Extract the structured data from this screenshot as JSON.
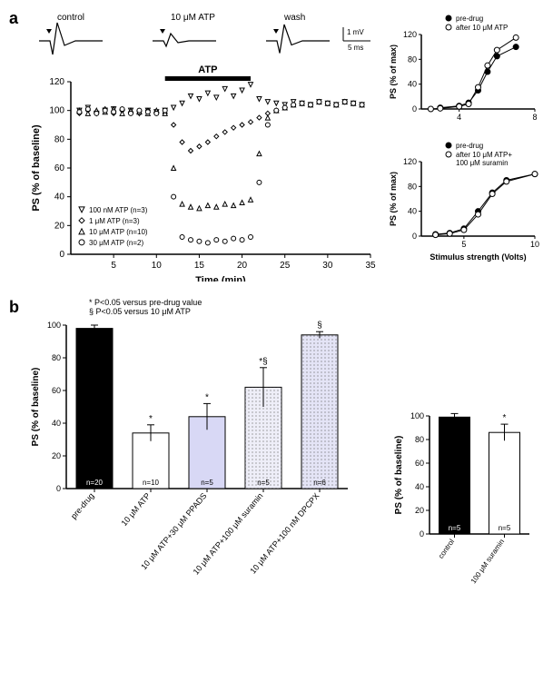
{
  "panel_a": {
    "label": "a",
    "traces": {
      "control_label": "control",
      "atp_label": "10 μM ATP",
      "wash_label": "wash",
      "scale_v": "1 mV",
      "scale_t": "5 ms"
    },
    "timecourse": {
      "ylabel": "PS (% of baseline)",
      "xlabel": "Time (min)",
      "ylim": [
        0,
        120
      ],
      "yticks": [
        0,
        20,
        40,
        60,
        80,
        100,
        120
      ],
      "xlim": [
        0,
        35
      ],
      "xticks": [
        5,
        10,
        15,
        20,
        25,
        30,
        35
      ],
      "atp_bar_label": "ATP",
      "atp_bar_start": 11,
      "atp_bar_end": 21,
      "legend": [
        {
          "marker": "invtriangle",
          "label": "100 nM ATP (n=3)"
        },
        {
          "marker": "diamond",
          "label": "1 μM ATP (n=3)"
        },
        {
          "marker": "triangle",
          "label": "10 μM ATP (n=10)"
        },
        {
          "marker": "circle",
          "label": "30 μM ATP (n=2)"
        }
      ],
      "series": {
        "100nM": {
          "marker": "invtriangle",
          "data": [
            [
              1,
              100
            ],
            [
              2,
              102
            ],
            [
              3,
              98
            ],
            [
              4,
              100
            ],
            [
              5,
              101
            ],
            [
              6,
              99
            ],
            [
              7,
              100
            ],
            [
              8,
              98
            ],
            [
              9,
              100
            ],
            [
              10,
              99
            ],
            [
              11,
              100
            ],
            [
              12,
              102
            ],
            [
              13,
              105
            ],
            [
              14,
              110
            ],
            [
              15,
              108
            ],
            [
              16,
              112
            ],
            [
              17,
              109
            ],
            [
              18,
              115
            ],
            [
              19,
              110
            ],
            [
              20,
              114
            ],
            [
              21,
              118
            ],
            [
              22,
              108
            ],
            [
              23,
              106
            ],
            [
              24,
              105
            ],
            [
              25,
              104
            ],
            [
              26,
              106
            ],
            [
              27,
              105
            ],
            [
              28,
              104
            ],
            [
              29,
              106
            ],
            [
              30,
              105
            ],
            [
              31,
              104
            ],
            [
              32,
              106
            ],
            [
              33,
              105
            ],
            [
              34,
              104
            ]
          ]
        },
        "1uM": {
          "marker": "diamond",
          "data": [
            [
              1,
              98
            ],
            [
              2,
              100
            ],
            [
              3,
              99
            ],
            [
              4,
              101
            ],
            [
              5,
              98
            ],
            [
              6,
              100
            ],
            [
              7,
              99
            ],
            [
              8,
              98
            ],
            [
              9,
              100
            ],
            [
              10,
              99
            ],
            [
              11,
              98
            ],
            [
              12,
              90
            ],
            [
              13,
              78
            ],
            [
              14,
              72
            ],
            [
              15,
              75
            ],
            [
              16,
              78
            ],
            [
              17,
              82
            ],
            [
              18,
              85
            ],
            [
              19,
              88
            ],
            [
              20,
              90
            ],
            [
              21,
              92
            ],
            [
              22,
              95
            ],
            [
              23,
              98
            ],
            [
              24,
              100
            ],
            [
              25,
              102
            ],
            [
              26,
              104
            ],
            [
              27,
              105
            ],
            [
              28,
              104
            ],
            [
              29,
              106
            ],
            [
              30,
              105
            ],
            [
              31,
              104
            ],
            [
              32,
              106
            ],
            [
              33,
              105
            ],
            [
              34,
              104
            ]
          ]
        },
        "10uM": {
          "marker": "triangle",
          "data": [
            [
              1,
              100
            ],
            [
              2,
              98
            ],
            [
              3,
              100
            ],
            [
              4,
              99
            ],
            [
              5,
              101
            ],
            [
              6,
              98
            ],
            [
              7,
              100
            ],
            [
              8,
              99
            ],
            [
              9,
              98
            ],
            [
              10,
              100
            ],
            [
              11,
              98
            ],
            [
              12,
              60
            ],
            [
              13,
              35
            ],
            [
              14,
              33
            ],
            [
              15,
              32
            ],
            [
              16,
              34
            ],
            [
              17,
              33
            ],
            [
              18,
              35
            ],
            [
              19,
              34
            ],
            [
              20,
              36
            ],
            [
              21,
              38
            ],
            [
              22,
              70
            ],
            [
              23,
              95
            ],
            [
              24,
              100
            ],
            [
              25,
              102
            ],
            [
              26,
              104
            ],
            [
              27,
              105
            ],
            [
              28,
              104
            ],
            [
              29,
              106
            ],
            [
              30,
              105
            ],
            [
              31,
              104
            ],
            [
              32,
              106
            ],
            [
              33,
              105
            ],
            [
              34,
              104
            ]
          ]
        },
        "30uM": {
          "marker": "circle",
          "data": [
            [
              1,
              99
            ],
            [
              2,
              101
            ],
            [
              3,
              98
            ],
            [
              4,
              100
            ],
            [
              5,
              99
            ],
            [
              6,
              101
            ],
            [
              7,
              98
            ],
            [
              8,
              100
            ],
            [
              9,
              99
            ],
            [
              10,
              98
            ],
            [
              11,
              100
            ],
            [
              12,
              40
            ],
            [
              13,
              12
            ],
            [
              14,
              10
            ],
            [
              15,
              9
            ],
            [
              16,
              8
            ],
            [
              17,
              10
            ],
            [
              18,
              9
            ],
            [
              19,
              11
            ],
            [
              20,
              10
            ],
            [
              21,
              12
            ],
            [
              22,
              50
            ],
            [
              23,
              90
            ],
            [
              24,
              100
            ],
            [
              25,
              102
            ],
            [
              26,
              104
            ],
            [
              27,
              105
            ],
            [
              28,
              104
            ],
            [
              29,
              106
            ],
            [
              30,
              105
            ],
            [
              31,
              104
            ],
            [
              32,
              106
            ],
            [
              33,
              105
            ],
            [
              34,
              104
            ]
          ]
        }
      },
      "grid_color": "#000",
      "bg": "#fff"
    },
    "io_top": {
      "ylabel": "PS (% of max)",
      "xlabel": "",
      "ylim": [
        0,
        120
      ],
      "yticks": [
        0,
        40,
        80,
        120
      ],
      "xlim": [
        2,
        8
      ],
      "xticks": [
        4,
        8
      ],
      "legend": [
        {
          "fill": "#000",
          "label": "pre-drug"
        },
        {
          "fill": "#fff",
          "label": "after 10 μM ATP"
        }
      ],
      "series": {
        "pre": {
          "marker": "fcircle",
          "data": [
            [
              3,
              2
            ],
            [
              4,
              5
            ],
            [
              4.5,
              10
            ],
            [
              5,
              30
            ],
            [
              5.5,
              60
            ],
            [
              6,
              85
            ],
            [
              7,
              100
            ]
          ]
        },
        "post": {
          "marker": "circle",
          "data": [
            [
              2.5,
              0
            ],
            [
              3,
              1
            ],
            [
              4,
              4
            ],
            [
              4.5,
              8
            ],
            [
              5,
              35
            ],
            [
              5.5,
              70
            ],
            [
              6,
              95
            ],
            [
              7,
              115
            ]
          ]
        }
      }
    },
    "io_bottom": {
      "ylabel": "PS (% of max)",
      "xlabel": "Stimulus strength (Volts)",
      "ylim": [
        0,
        120
      ],
      "yticks": [
        0,
        40,
        80,
        120
      ],
      "xlim": [
        2,
        10
      ],
      "xticks": [
        5,
        10
      ],
      "legend": [
        {
          "fill": "#000",
          "label": "pre-drug"
        },
        {
          "fill": "#fff",
          "label": "after 10 μM ATP+\n100 μM suramin"
        }
      ],
      "series": {
        "pre": {
          "marker": "fcircle",
          "data": [
            [
              3,
              3
            ],
            [
              4,
              5
            ],
            [
              5,
              12
            ],
            [
              6,
              40
            ],
            [
              7,
              70
            ],
            [
              8,
              90
            ],
            [
              10,
              100
            ]
          ]
        },
        "post": {
          "marker": "circle",
          "data": [
            [
              3,
              2
            ],
            [
              4,
              4
            ],
            [
              5,
              10
            ],
            [
              6,
              35
            ],
            [
              7,
              68
            ],
            [
              8,
              88
            ],
            [
              10,
              100
            ]
          ]
        }
      }
    }
  },
  "panel_b": {
    "label": "b",
    "sig_legend": [
      "*  P<0.05 versus pre-drug value",
      "§  P<0.05 versus 10 μM ATP"
    ],
    "main_bar": {
      "ylabel": "PS (% of baseline)",
      "ylim": [
        0,
        100
      ],
      "yticks": [
        0,
        20,
        40,
        60,
        80,
        100
      ],
      "bars": [
        {
          "label": "pre-drug",
          "value": 98,
          "err": 2,
          "fill": "#000000",
          "n": "n=20",
          "sig": ""
        },
        {
          "label": "10 μM ATP",
          "value": 34,
          "err": 5,
          "fill": "#ffffff",
          "n": "n=10",
          "sig": "*"
        },
        {
          "label": "10 μM ATP+30 μM PPADS",
          "value": 44,
          "err": 8,
          "fill": "#d8d8f5",
          "n": "n=5",
          "sig": "*"
        },
        {
          "label": "10 μM ATP+100 μM suramin",
          "value": 62,
          "err": 12,
          "fill": "#eeeef8",
          "n": "n=5",
          "sig": "*§",
          "pattern": "dots"
        },
        {
          "label": "10 μM ATP+100 nM DPCPX",
          "value": 94,
          "err": 2,
          "fill": "#e4e4f6",
          "n": "n=6",
          "sig": "§",
          "pattern": "dots"
        }
      ]
    },
    "side_bar": {
      "ylabel": "PS (% of baseline)",
      "ylim": [
        0,
        100
      ],
      "yticks": [
        0,
        20,
        40,
        60,
        80,
        100
      ],
      "bars": [
        {
          "label": "control",
          "value": 99,
          "err": 3,
          "fill": "#000000",
          "n": "n=5",
          "sig": ""
        },
        {
          "label": "100 μM suramin",
          "value": 86,
          "err": 7,
          "fill": "#ffffff",
          "n": "n=5",
          "sig": "*"
        }
      ]
    }
  },
  "colors": {
    "axis": "#000",
    "text": "#000"
  }
}
